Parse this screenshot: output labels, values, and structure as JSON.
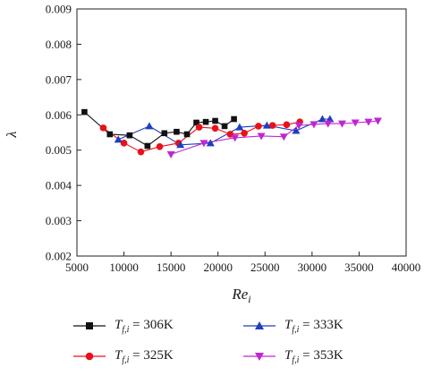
{
  "chart_data": {
    "type": "line",
    "title": "",
    "xlabel_main": "Re",
    "xlabel_sub": "i",
    "ylabel": "λ",
    "xlim": [
      5000,
      40000
    ],
    "ylim": [
      0.002,
      0.009
    ],
    "x_ticks": [
      "5000",
      "10000",
      "15000",
      "20000",
      "25000",
      "30000",
      "35000",
      "40000"
    ],
    "y_ticks": [
      "0.002",
      "0.003",
      "0.004",
      "0.005",
      "0.006",
      "0.007",
      "0.008",
      "0.009"
    ],
    "grid": false,
    "legend_position": "bottom",
    "series": [
      {
        "name": "306K",
        "color": "#111111",
        "marker": "square",
        "x": [
          5800,
          8500,
          10600,
          12500,
          14300,
          15600,
          16700,
          17700,
          18700,
          19700,
          20700,
          21700
        ],
        "y": [
          0.00608,
          0.00545,
          0.00542,
          0.00512,
          0.00548,
          0.00552,
          0.00545,
          0.00578,
          0.0058,
          0.00583,
          0.00568,
          0.00588
        ]
      },
      {
        "name": "325K",
        "color": "#e8111b",
        "marker": "circle",
        "x": [
          7800,
          10000,
          11800,
          13800,
          15800,
          18000,
          19700,
          21300,
          22800,
          24300,
          25800,
          27300,
          28700
        ],
        "y": [
          0.00563,
          0.0052,
          0.00495,
          0.0051,
          0.0052,
          0.00565,
          0.00562,
          0.00545,
          0.00548,
          0.00568,
          0.0057,
          0.00572,
          0.0058
        ]
      },
      {
        "name": "333K",
        "color": "#1f3fbf",
        "marker": "triangle-up",
        "x": [
          9400,
          12700,
          16000,
          19200,
          22300,
          25200,
          28300,
          31100,
          31900
        ],
        "y": [
          0.0053,
          0.00568,
          0.00515,
          0.0052,
          0.00565,
          0.0057,
          0.00555,
          0.00588,
          0.00588
        ]
      },
      {
        "name": "353K",
        "color": "#c026d3",
        "marker": "triangle-down",
        "x": [
          15000,
          18500,
          21800,
          24600,
          27000,
          28600,
          30200,
          31700,
          33200,
          34600,
          36000,
          37000
        ],
        "y": [
          0.00488,
          0.0052,
          0.00535,
          0.0054,
          0.00538,
          0.0057,
          0.00573,
          0.00575,
          0.00575,
          0.00578,
          0.0058,
          0.00583
        ]
      }
    ]
  },
  "legend": {
    "items": [
      {
        "symbol": "T",
        "subscript": "f,i",
        "value": " = 306K"
      },
      {
        "symbol": "T",
        "subscript": "f,i",
        "value": " = 333K"
      },
      {
        "symbol": "T",
        "subscript": "f,i",
        "value": " = 325K"
      },
      {
        "symbol": "T",
        "subscript": "f,i",
        "value": " = 353K"
      }
    ]
  }
}
